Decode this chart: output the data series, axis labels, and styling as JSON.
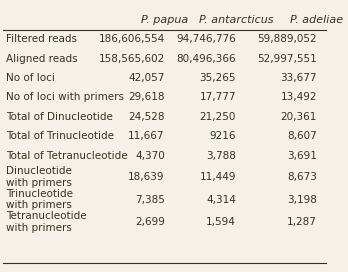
{
  "col_headers": [
    "",
    "P. papua",
    "P. antarcticus",
    "P. adeliae"
  ],
  "rows": [
    [
      "Filtered reads",
      "186,606,554",
      "94,746,776",
      "59,889,052"
    ],
    [
      "Aligned reads",
      "158,565,602",
      "80,496,366",
      "52,997,551"
    ],
    [
      "No of loci",
      "42,057",
      "35,265",
      "33,677"
    ],
    [
      "No of loci with primers",
      "29,618",
      "17,777",
      "13,492"
    ],
    [
      "Total of Dinucleotide",
      "24,528",
      "21,250",
      "20,361"
    ],
    [
      "Total of Trinucleotide",
      "11,667",
      "9216",
      "8,607"
    ],
    [
      "Total of Tetranucleotide",
      "4,370",
      "3,788",
      "3,691"
    ],
    [
      "Dinucleotide\nwith primers",
      "18,639",
      "11,449",
      "8,673"
    ],
    [
      "Trinucleotide\nwith primers",
      "7,385",
      "4,314",
      "3,198"
    ],
    [
      "Tetranucleotide\nwith primers",
      "2,699",
      "1,594",
      "1,287"
    ]
  ],
  "background_color": "#f5f0e8",
  "text_color": "#3a3020",
  "header_style": "italic",
  "font_size": 7.5,
  "header_font_size": 8.0
}
